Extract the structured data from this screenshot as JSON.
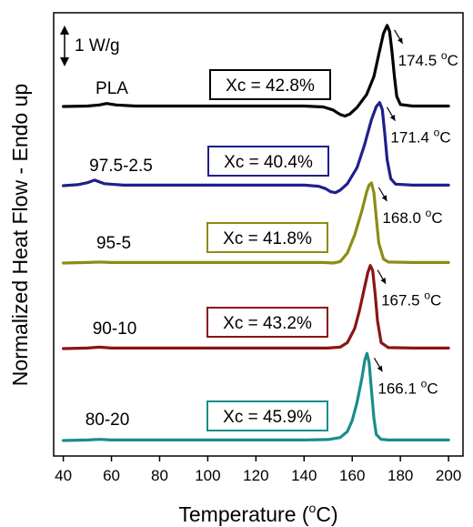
{
  "chart_data": {
    "type": "line",
    "title": "",
    "xlabel": "Temperature (°C)",
    "xlabel_main": "Temperature (",
    "xlabel_unit": "o",
    "xlabel_end": "C)",
    "ylabel": "Normalized Heat Flow - Endo up",
    "xlim": [
      36,
      206
    ],
    "xticks": [
      40,
      60,
      80,
      100,
      120,
      140,
      160,
      180,
      200
    ],
    "scale_bar": "1 W/g",
    "series": [
      {
        "name": "PLA",
        "color": "#000000",
        "xc_label": "Xc = 42.8%",
        "peak_temp": 174.5,
        "peak_label": "174.5 °C",
        "baseline": 0,
        "x": [
          40,
          50,
          55,
          58,
          62,
          70,
          100,
          140,
          148,
          152,
          155,
          157,
          159,
          162,
          166,
          169,
          171,
          173,
          174.5,
          175.5,
          176.5,
          177.5,
          178.5,
          180,
          185,
          190,
          200
        ],
        "signal": [
          0,
          0.05,
          0.15,
          0.3,
          0.15,
          0.05,
          0.05,
          0.05,
          -0.05,
          -0.35,
          -0.8,
          -0.95,
          -0.75,
          -0.1,
          1.2,
          3.0,
          5.2,
          7.3,
          8.1,
          7.5,
          5.5,
          3.0,
          1.0,
          0.2,
          0.05,
          0.05,
          0.05
        ]
      },
      {
        "name": "97.5-2.5",
        "color": "#1f1f8c",
        "xc_label": "Xc = 40.4%",
        "peak_temp": 171.4,
        "peak_label": "171.4 °C",
        "baseline": 0,
        "x": [
          40,
          46,
          50,
          53,
          57,
          65,
          100,
          140,
          146,
          149,
          151,
          153,
          155,
          158,
          162,
          165,
          168,
          170,
          171.4,
          172.5,
          173.5,
          174.5,
          176,
          178,
          185,
          200
        ],
        "signal": [
          0,
          0.1,
          0.3,
          0.55,
          0.2,
          0.05,
          0.05,
          0.05,
          -0.05,
          -0.3,
          -0.6,
          -0.7,
          -0.45,
          0.2,
          1.8,
          4.0,
          6.6,
          7.9,
          8.3,
          7.6,
          5.2,
          2.6,
          0.7,
          0.15,
          0.05,
          0.05
        ]
      },
      {
        "name": "95-5",
        "color": "#8c8c14",
        "xc_label": "Xc = 41.8%",
        "peak_temp": 168.0,
        "peak_label": "168.0 °C",
        "baseline": 0,
        "x": [
          40,
          50,
          55,
          60,
          100,
          140,
          148,
          152,
          155,
          158,
          161,
          164,
          166,
          167,
          168,
          169,
          170,
          171,
          173,
          175,
          185,
          200
        ],
        "signal": [
          0,
          0.05,
          0.1,
          0.05,
          0.05,
          0.05,
          0.05,
          0.0,
          0.15,
          1.0,
          2.8,
          5.2,
          7.1,
          7.8,
          8.0,
          7.0,
          4.5,
          2.0,
          0.4,
          0.1,
          0.05,
          0.05
        ]
      },
      {
        "name": "90-10",
        "color": "#8c1414",
        "xc_label": "Xc = 43.2%",
        "peak_temp": 167.5,
        "peak_label": "167.5 °C",
        "baseline": 0,
        "x": [
          40,
          50,
          55,
          60,
          100,
          140,
          150,
          155,
          158,
          161,
          163,
          165,
          166.5,
          167.5,
          168.5,
          169.5,
          170.5,
          172,
          175,
          185,
          200
        ],
        "signal": [
          0,
          0.05,
          0.15,
          0.05,
          0.05,
          0.05,
          0.05,
          0.15,
          0.6,
          2.0,
          3.8,
          6.0,
          7.6,
          8.3,
          7.8,
          5.5,
          2.8,
          0.6,
          0.1,
          0.05,
          0.05
        ]
      },
      {
        "name": "80-20",
        "color": "#1a8c8c",
        "xc_label": "Xc = 45.9%",
        "peak_temp": 166.1,
        "peak_label": "166.1 °C",
        "baseline": 0,
        "x": [
          40,
          50,
          55,
          60,
          100,
          140,
          150,
          155,
          158,
          160,
          162,
          164,
          165.2,
          166.1,
          167,
          168,
          169,
          170,
          172,
          175,
          185,
          200
        ],
        "signal": [
          0,
          0.05,
          0.12,
          0.05,
          0.05,
          0.05,
          0.1,
          0.3,
          0.9,
          2.0,
          3.8,
          6.2,
          8.0,
          8.7,
          7.8,
          5.0,
          2.2,
          0.6,
          0.12,
          0.05,
          0.05,
          0.05
        ]
      }
    ]
  }
}
